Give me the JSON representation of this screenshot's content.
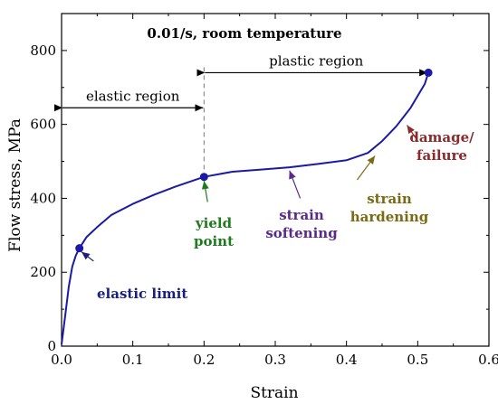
{
  "chart_data": {
    "type": "line",
    "title": "0.01/s, room temperature",
    "xlabel": "Strain",
    "ylabel": "Flow stress, MPa",
    "xlim": [
      0.0,
      0.6
    ],
    "ylim": [
      0,
      900
    ],
    "x_ticks": [
      "0.0",
      "0.1",
      "0.2",
      "0.3",
      "0.4",
      "0.5",
      "0.6"
    ],
    "y_ticks": [
      "0",
      "200",
      "400",
      "600",
      "800"
    ],
    "grid": false,
    "line_color": "#1a1aa6",
    "series": [
      {
        "x": [
          0.0,
          0.005,
          0.01,
          0.015,
          0.02,
          0.025,
          0.035,
          0.05,
          0.07,
          0.1,
          0.13,
          0.16,
          0.2,
          0.24,
          0.28,
          0.32,
          0.36,
          0.4,
          0.43,
          0.45,
          0.47,
          0.49,
          0.51,
          0.515
        ],
        "y": [
          5,
          80,
          160,
          215,
          245,
          265,
          295,
          322,
          355,
          385,
          410,
          432,
          458,
          472,
          478,
          484,
          493,
          503,
          523,
          555,
          595,
          645,
          710,
          740
        ]
      }
    ],
    "points": [
      {
        "name": "elastic-limit",
        "x": 0.025,
        "y": 265
      },
      {
        "name": "yield-point",
        "x": 0.2,
        "y": 458
      },
      {
        "name": "failure",
        "x": 0.515,
        "y": 740
      }
    ],
    "elastic_plastic_boundary_x": 0.2,
    "regions": [
      {
        "label": "elastic region",
        "x_start": 0.0,
        "x_end": 0.2,
        "y": 645
      },
      {
        "label": "plastic region",
        "x_start": 0.2,
        "x_end": 0.515,
        "y": 740
      }
    ],
    "annotations": [
      {
        "lines": [
          "elastic limit"
        ],
        "color": "#1a1f7a",
        "arrow_color": "#1a1f7a",
        "arrow_from": [
          0.045,
          230
        ],
        "arrow_to": [
          0.028,
          255
        ]
      },
      {
        "lines": [
          "yield",
          "point"
        ],
        "color": "#1f7a1f",
        "arrow_color": "#1f7a1f",
        "arrow_from": [
          0.205,
          390
        ],
        "arrow_to": [
          0.2,
          447
        ]
      },
      {
        "lines": [
          "strain",
          "softening"
        ],
        "color": "#5a2a8a",
        "arrow_color": "#5a2a8a",
        "arrow_from": [
          0.335,
          400
        ],
        "arrow_to": [
          0.32,
          475
        ]
      },
      {
        "lines": [
          "strain",
          "hardening"
        ],
        "color": "#7a6a14",
        "arrow_color": "#7a6a14",
        "arrow_from": [
          0.415,
          450
        ],
        "arrow_to": [
          0.44,
          515
        ]
      },
      {
        "lines": [
          "damage/",
          "failure"
        ],
        "color": "#8a2a2a",
        "arrow_color": "#8a2a2a",
        "arrow_from": [
          0.5,
          555
        ],
        "arrow_to": [
          0.485,
          598
        ]
      }
    ]
  }
}
